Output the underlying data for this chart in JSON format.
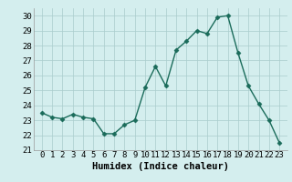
{
  "xlabel": "Humidex (Indice chaleur)",
  "x": [
    0,
    1,
    2,
    3,
    4,
    5,
    6,
    7,
    8,
    9,
    10,
    11,
    12,
    13,
    14,
    15,
    16,
    17,
    18,
    19,
    20,
    21,
    22,
    23
  ],
  "y": [
    23.5,
    23.2,
    23.1,
    23.4,
    23.2,
    23.1,
    22.1,
    22.1,
    22.7,
    23.0,
    25.2,
    26.6,
    25.3,
    27.7,
    28.3,
    29.0,
    28.8,
    29.9,
    30.0,
    27.5,
    25.3,
    24.1,
    23.0,
    21.5
  ],
  "line_color": "#1a6b5a",
  "marker": "D",
  "markersize": 2.5,
  "linewidth": 1.0,
  "bg_color": "#d4eeee",
  "grid_color": "#aacccc",
  "ylim": [
    21,
    30.5
  ],
  "yticks": [
    21,
    22,
    23,
    24,
    25,
    26,
    27,
    28,
    29,
    30
  ],
  "tick_fontsize": 6.5,
  "xlabel_fontsize": 7.5
}
